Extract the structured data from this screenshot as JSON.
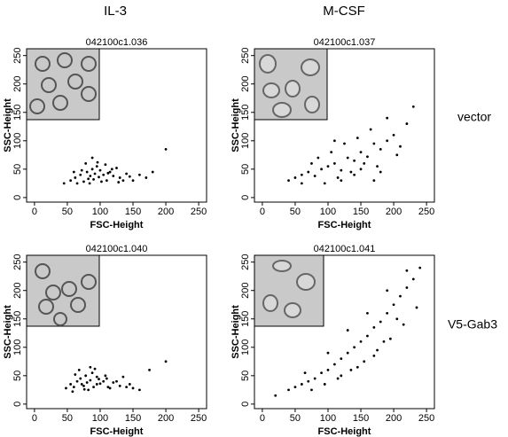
{
  "column_labels": [
    "IL-3",
    "M-CSF"
  ],
  "row_labels": [
    "vector",
    "V5-Gab3"
  ],
  "chart_data": [
    {
      "type": "scatter",
      "title": "042100c1.036",
      "xlabel": "FSC-Height",
      "ylabel": "SSC-Height",
      "xlim": [
        -12,
        262
      ],
      "ylim": [
        -8,
        262
      ],
      "xticks": [
        0,
        50,
        100,
        150,
        200,
        250
      ],
      "yticks": [
        0,
        50,
        100,
        150,
        200,
        250
      ],
      "color": "#000000",
      "x": [
        55,
        62,
        70,
        75,
        80,
        85,
        88,
        90,
        92,
        95,
        98,
        100,
        105,
        110,
        115,
        120,
        125,
        130,
        140,
        150,
        160,
        170,
        78,
        84,
        96,
        102,
        108,
        118,
        65,
        72,
        135,
        180,
        200,
        45,
        88,
        60,
        82,
        112,
        128,
        145
      ],
      "y": [
        30,
        35,
        40,
        28,
        45,
        38,
        50,
        32,
        42,
        55,
        36,
        48,
        40,
        30,
        45,
        38,
        52,
        35,
        42,
        30,
        40,
        35,
        60,
        25,
        62,
        28,
        58,
        50,
        25,
        48,
        30,
        45,
        85,
        25,
        70,
        45,
        33,
        43,
        27,
        37
      ]
    },
    {
      "type": "scatter",
      "title": "042100c1.037",
      "xlabel": "FSC-Height",
      "ylabel": "SSC-Height",
      "xlim": [
        -12,
        262
      ],
      "ylim": [
        -8,
        262
      ],
      "xticks": [
        0,
        50,
        100,
        150,
        200,
        250
      ],
      "yticks": [
        0,
        50,
        100,
        150,
        200,
        250
      ],
      "color": "#000000",
      "x": [
        40,
        50,
        60,
        70,
        80,
        90,
        100,
        110,
        120,
        130,
        140,
        150,
        160,
        170,
        180,
        190,
        200,
        210,
        85,
        95,
        105,
        115,
        125,
        135,
        145,
        155,
        165,
        175,
        190,
        205,
        220,
        60,
        75,
        110,
        140,
        170,
        230,
        120,
        150,
        180
      ],
      "y": [
        30,
        35,
        40,
        45,
        38,
        50,
        55,
        60,
        48,
        70,
        65,
        80,
        72,
        95,
        85,
        100,
        110,
        90,
        70,
        25,
        80,
        35,
        95,
        45,
        105,
        60,
        120,
        55,
        140,
        75,
        130,
        25,
        60,
        100,
        40,
        30,
        160,
        30,
        50,
        45
      ]
    },
    {
      "type": "scatter",
      "title": "042100c1.040",
      "xlabel": "FSC-Height",
      "ylabel": "SSC-Height",
      "xlim": [
        -12,
        262
      ],
      "ylim": [
        -8,
        262
      ],
      "xticks": [
        0,
        50,
        100,
        150,
        200,
        250
      ],
      "yticks": [
        0,
        50,
        100,
        150,
        200,
        250
      ],
      "color": "#000000",
      "x": [
        48,
        55,
        60,
        65,
        70,
        75,
        78,
        80,
        85,
        88,
        90,
        95,
        100,
        105,
        110,
        115,
        120,
        130,
        140,
        150,
        160,
        68,
        82,
        92,
        98,
        108,
        125,
        58,
        72,
        135,
        175,
        200,
        85,
        95,
        62,
        112,
        145,
        76
      ],
      "y": [
        28,
        35,
        30,
        40,
        45,
        32,
        50,
        38,
        42,
        55,
        30,
        48,
        36,
        40,
        45,
        28,
        38,
        32,
        30,
        28,
        25,
        60,
        25,
        62,
        44,
        50,
        40,
        22,
        35,
        48,
        60,
        75,
        65,
        35,
        52,
        30,
        35,
        26
      ]
    },
    {
      "type": "scatter",
      "title": "042100c1.041",
      "xlabel": "FSC-Height",
      "ylabel": "SSC-Height",
      "xlim": [
        -12,
        262
      ],
      "ylim": [
        -8,
        262
      ],
      "xticks": [
        0,
        50,
        100,
        150,
        200,
        250
      ],
      "yticks": [
        0,
        50,
        100,
        150,
        200,
        250
      ],
      "color": "#000000",
      "x": [
        20,
        40,
        50,
        60,
        70,
        80,
        90,
        100,
        110,
        120,
        130,
        140,
        150,
        160,
        170,
        180,
        190,
        200,
        210,
        220,
        230,
        240,
        75,
        95,
        115,
        135,
        155,
        175,
        195,
        215,
        235,
        100,
        130,
        160,
        190,
        220,
        65,
        145,
        185,
        205,
        120,
        170
      ],
      "y": [
        15,
        25,
        30,
        35,
        40,
        45,
        55,
        60,
        70,
        80,
        90,
        100,
        110,
        120,
        135,
        145,
        160,
        175,
        190,
        205,
        220,
        240,
        25,
        35,
        45,
        60,
        75,
        95,
        115,
        140,
        170,
        90,
        130,
        160,
        200,
        235,
        55,
        65,
        110,
        150,
        50,
        85
      ]
    }
  ]
}
